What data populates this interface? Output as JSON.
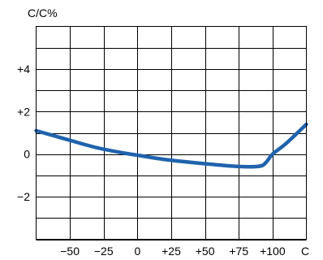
{
  "chart_data": {
    "type": "line",
    "ylabel": "C/C%",
    "xlabel": "C",
    "x_ticks": [
      {
        "value": -50,
        "label": "−50"
      },
      {
        "value": -25,
        "label": "−25"
      },
      {
        "value": 0,
        "label": "0"
      },
      {
        "value": 25,
        "label": "+25"
      },
      {
        "value": 50,
        "label": "+50"
      },
      {
        "value": 75,
        "label": "+75"
      },
      {
        "value": 100,
        "label": "+100"
      }
    ],
    "y_ticks": [
      {
        "value": 4,
        "label": "+4"
      },
      {
        "value": 2,
        "label": "+2"
      },
      {
        "value": 0,
        "label": "0"
      },
      {
        "value": -2,
        "label": "−2"
      }
    ],
    "x_gridlines": [
      -50,
      -25,
      0,
      25,
      50,
      75,
      100
    ],
    "y_gridlines": [
      5,
      4,
      3,
      2,
      1,
      0,
      -1,
      -2,
      -3,
      -4
    ],
    "xlim": [
      -75,
      125
    ],
    "ylim": [
      -4,
      6
    ],
    "grid": true,
    "series": [
      {
        "color": "#1f63ac",
        "x": [
          -75,
          -50,
          -30,
          -10,
          0,
          20,
          50,
          75,
          90,
          95,
          100,
          110,
          125
        ],
        "y": [
          1.1,
          0.65,
          0.3,
          0.05,
          -0.05,
          -0.25,
          -0.45,
          -0.58,
          -0.57,
          -0.4,
          0.0,
          0.5,
          1.4
        ]
      }
    ]
  }
}
